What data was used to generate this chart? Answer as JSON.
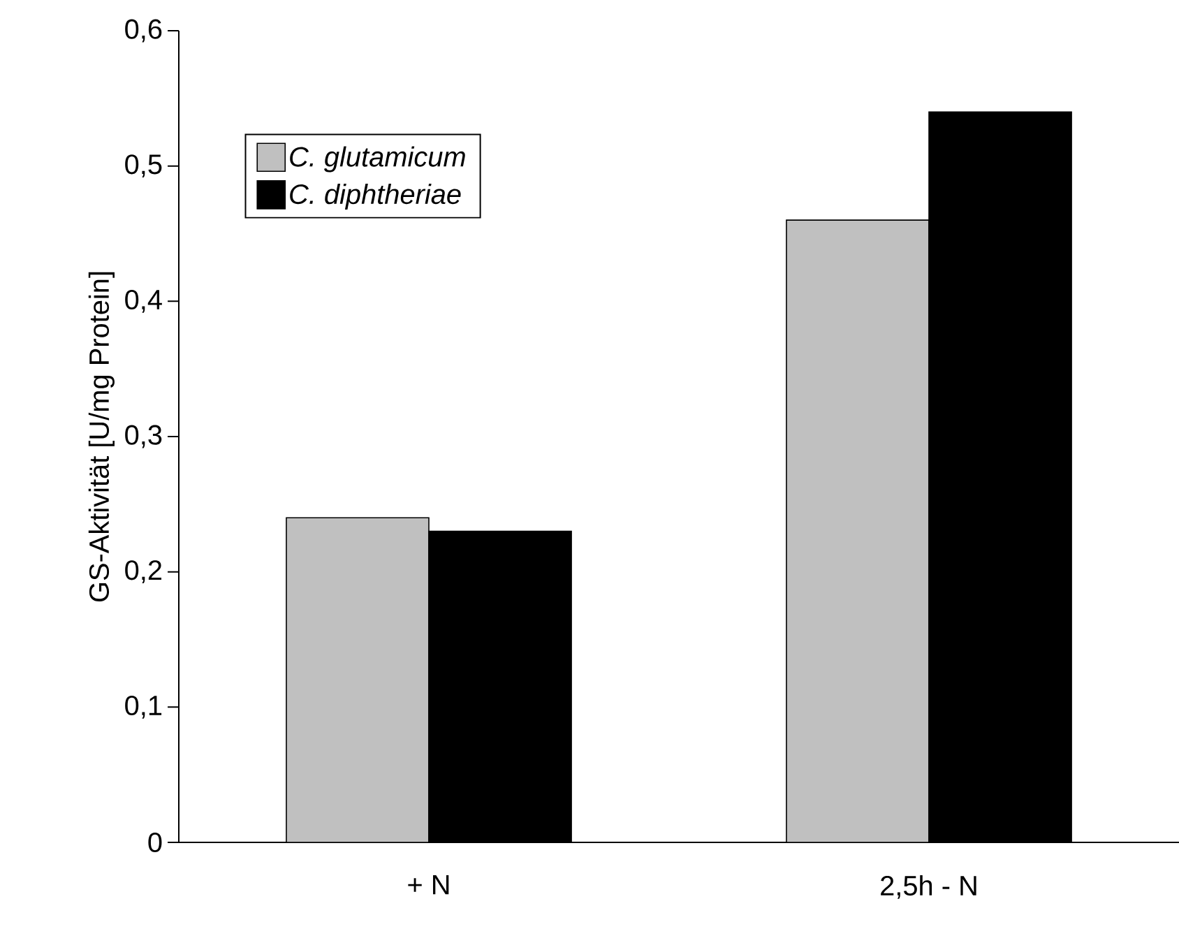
{
  "chart_data": {
    "type": "bar",
    "ylabel": "GS-Aktivität [U/mg Protein]",
    "categories": [
      "+ N",
      "2,5h - N"
    ],
    "series": [
      {
        "name": "C. glutamicum",
        "color": "#c0c0c0",
        "values": [
          0.24,
          0.46
        ]
      },
      {
        "name": "C. diphtheriae",
        "color": "#000000",
        "values": [
          0.23,
          0.54
        ]
      }
    ],
    "ylim": [
      0,
      0.6
    ],
    "yticks": [
      0,
      {
        "value": 0.1,
        "label": "0,1"
      },
      {
        "value": 0.2,
        "label": "0,2"
      },
      {
        "value": 0.3,
        "label": "0,3"
      },
      {
        "value": 0.4,
        "label": "0,4"
      },
      {
        "value": 0.5,
        "label": "0,5"
      },
      {
        "value": 0.6,
        "label": "0,6"
      }
    ],
    "legend": "top left"
  }
}
